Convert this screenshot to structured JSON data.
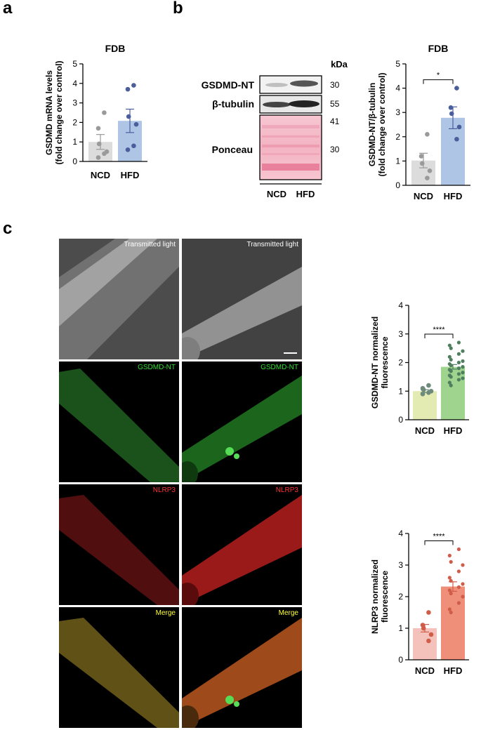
{
  "panels": {
    "a": "a",
    "b": "b",
    "c": "c"
  },
  "western_blot": {
    "kda_header": "kDa",
    "row_labels": [
      "GSDMD-NT",
      "β-tubulin",
      "Ponceau"
    ],
    "markers": [
      "30",
      "55",
      "41",
      "30"
    ],
    "lanes": [
      "NCD",
      "HFD"
    ]
  },
  "microscopy": {
    "row_labels": [
      "Transmitted light",
      "GSDMD-NT",
      "NLRP3",
      "Merge"
    ],
    "label_colors": [
      "#ffffff",
      "#33dd33",
      "#ff3333",
      "#ffff33"
    ]
  },
  "chart_data": [
    {
      "type": "bar",
      "title": "FDB",
      "ylabel": "GSDMD mRNA levels\n(fold change over control)",
      "categories": [
        "NCD",
        "HFD"
      ],
      "values": [
        1.0,
        2.08
      ],
      "errors": [
        0.38,
        0.6
      ],
      "points": [
        [
          2.5,
          1.7,
          0.9,
          0.5,
          0.4,
          0.2
        ],
        [
          3.9,
          3.7,
          2.3,
          1.9,
          0.8,
          0.6
        ]
      ],
      "colors": [
        "#dcdcdc",
        "#afc5e6"
      ],
      "point_colors": [
        "#9a9a9a",
        "#4a5e9c"
      ],
      "ylim": [
        0,
        5
      ],
      "yticks": [
        0,
        1,
        2,
        3,
        4,
        5
      ],
      "significance": ""
    },
    {
      "type": "bar",
      "title": "FDB",
      "ylabel": "GSDMD-NT/β-tubulin\n(fold change over control)",
      "categories": [
        "NCD",
        "HFD"
      ],
      "values": [
        1.02,
        2.78
      ],
      "errors": [
        0.3,
        0.45
      ],
      "points": [
        [
          2.1,
          1.2,
          0.9,
          0.6,
          0.3
        ],
        [
          4.0,
          3.2,
          2.95,
          2.4,
          1.9
        ]
      ],
      "colors": [
        "#dcdcdc",
        "#afc5e6"
      ],
      "point_colors": [
        "#9a9a9a",
        "#4a5e9c"
      ],
      "ylim": [
        0,
        5
      ],
      "yticks": [
        0,
        1,
        2,
        3,
        4,
        5
      ],
      "significance": "*"
    },
    {
      "type": "bar",
      "title": "",
      "ylabel": "GSDMD-NT normalized\nfluorescence",
      "categories": [
        "NCD",
        "HFD"
      ],
      "values": [
        1.0,
        1.85
      ],
      "errors": [
        0.05,
        0.08
      ],
      "points": [
        [
          1.2,
          1.1,
          1.05,
          1.0,
          0.95,
          0.9
        ],
        [
          2.7,
          2.6,
          2.5,
          2.4,
          2.3,
          2.2,
          2.1,
          2.05,
          2.0,
          1.95,
          1.9,
          1.85,
          1.8,
          1.75,
          1.7,
          1.65,
          1.6,
          1.55,
          1.5,
          1.45,
          1.4,
          1.3,
          1.2
        ]
      ],
      "colors": [
        "#e3eab2",
        "#9ed48e"
      ],
      "point_colors": [
        "#6d8a7a",
        "#4f7f5e"
      ],
      "ylim": [
        0,
        4
      ],
      "yticks": [
        0,
        1,
        2,
        3,
        4
      ],
      "significance": "****"
    },
    {
      "type": "bar",
      "title": "",
      "ylabel": "NLRP3 normalized\nfluorescence",
      "categories": [
        "NCD",
        "HFD"
      ],
      "values": [
        1.0,
        2.32
      ],
      "errors": [
        0.12,
        0.15
      ],
      "points": [
        [
          1.5,
          1.1,
          1.0,
          0.8,
          0.6
        ],
        [
          3.5,
          3.3,
          3.1,
          3.0,
          2.8,
          2.6,
          2.5,
          2.4,
          2.3,
          2.2,
          2.1,
          2.0,
          1.8,
          1.6,
          1.5
        ]
      ],
      "colors": [
        "#f4c2ba",
        "#ef8f7a"
      ],
      "point_colors": [
        "#d05c4a",
        "#d05c4a"
      ],
      "ylim": [
        0,
        4
      ],
      "yticks": [
        0,
        1,
        2,
        3,
        4
      ],
      "significance": "****"
    }
  ]
}
